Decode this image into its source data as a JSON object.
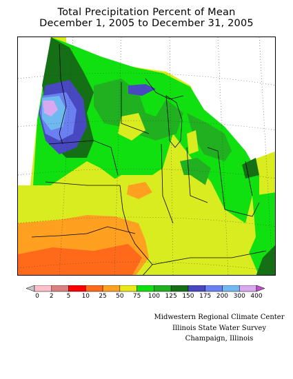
{
  "title": {
    "line1": "Total Precipitation Percent of Mean",
    "line2": "December 1, 2005 to December 31, 2005"
  },
  "legend": {
    "ticks": [
      "0",
      "2",
      "5",
      "10",
      "25",
      "50",
      "75",
      "100",
      "125",
      "150",
      "175",
      "200",
      "300",
      "400"
    ],
    "colors": [
      "#ffc0cb",
      "#d98080",
      "#ff0000",
      "#ff6a1a",
      "#ffa020",
      "#e8e81a",
      "#10e010",
      "#20b020",
      "#156f15",
      "#4848c0",
      "#6a80f0",
      "#70b8f0",
      "#d8a8f0"
    ]
  },
  "credits": {
    "line1": "Midwestern Regional Climate Center",
    "line2": "Illinois State Water Survey",
    "line3": "Champaign, Illinois"
  },
  "map_colors": {
    "base": "#d8ec20",
    "green": "#10e010",
    "med_green": "#20b020",
    "dark_green": "#156f15",
    "blue": "#4848c0",
    "light_blue": "#6a80f0",
    "sky": "#70b8f0",
    "lavender": "#d8a8f0",
    "orange": "#ffa020",
    "red_orange": "#ff6a1a",
    "white": "#ffffff"
  }
}
